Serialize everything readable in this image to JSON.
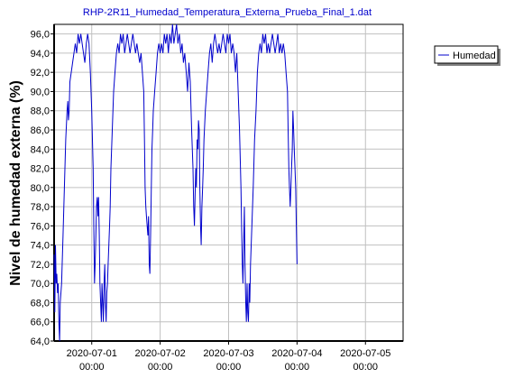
{
  "chart_data": {
    "type": "line",
    "title": "RHP-2R11_Humedad_Temperatura_Externa_Prueba_Final_1.dat",
    "xlabel": "",
    "ylabel": "Nivel de humedad externa (%)",
    "ylim": [
      64.0,
      97.0
    ],
    "xlim": [
      -0.55,
      4.55
    ],
    "grid": true,
    "legend": {
      "position": "top-right",
      "entries": [
        "Humedad"
      ]
    },
    "y_ticks": [
      "64,0",
      "66,0",
      "68,0",
      "70,0",
      "72,0",
      "74,0",
      "76,0",
      "78,0",
      "80,0",
      "82,0",
      "84,0",
      "86,0",
      "88,0",
      "90,0",
      "92,0",
      "94,0",
      "96,0"
    ],
    "x_ticks": [
      {
        "date": "2020-07-01",
        "time": "00:00"
      },
      {
        "date": "2020-07-02",
        "time": "00:00"
      },
      {
        "date": "2020-07-03",
        "time": "00:00"
      },
      {
        "date": "2020-07-04",
        "time": "00:00"
      },
      {
        "date": "2020-07-05",
        "time": "00:00"
      }
    ],
    "colors": {
      "series": "#0000cc"
    },
    "series": [
      {
        "name": "Humedad",
        "x_unit": "days relative to 2020-07-01 00:00",
        "points": [
          [
            -0.55,
            73
          ],
          [
            -0.54,
            67
          ],
          [
            -0.53,
            74
          ],
          [
            -0.52,
            70
          ],
          [
            -0.51,
            71
          ],
          [
            -0.5,
            69
          ],
          [
            -0.49,
            70
          ],
          [
            -0.48,
            66
          ],
          [
            -0.47,
            64
          ],
          [
            -0.46,
            68
          ],
          [
            -0.44,
            70
          ],
          [
            -0.42,
            75
          ],
          [
            -0.4,
            80
          ],
          [
            -0.38,
            85
          ],
          [
            -0.36,
            88
          ],
          [
            -0.35,
            89
          ],
          [
            -0.34,
            87
          ],
          [
            -0.33,
            88
          ],
          [
            -0.32,
            91
          ],
          [
            -0.3,
            92
          ],
          [
            -0.28,
            93
          ],
          [
            -0.26,
            94
          ],
          [
            -0.24,
            95
          ],
          [
            -0.22,
            94
          ],
          [
            -0.2,
            96
          ],
          [
            -0.18,
            95
          ],
          [
            -0.16,
            96
          ],
          [
            -0.14,
            95
          ],
          [
            -0.12,
            94
          ],
          [
            -0.1,
            93
          ],
          [
            -0.08,
            95
          ],
          [
            -0.06,
            96
          ],
          [
            -0.04,
            95
          ],
          [
            -0.02,
            92
          ],
          [
            0.0,
            88
          ],
          [
            0.02,
            82
          ],
          [
            0.03,
            76
          ],
          [
            0.04,
            70
          ],
          [
            0.05,
            72
          ],
          [
            0.06,
            75
          ],
          [
            0.07,
            78
          ],
          [
            0.08,
            79
          ],
          [
            0.09,
            77
          ],
          [
            0.1,
            79
          ],
          [
            0.11,
            75
          ],
          [
            0.12,
            70
          ],
          [
            0.13,
            68
          ],
          [
            0.14,
            66
          ],
          [
            0.15,
            70
          ],
          [
            0.16,
            68
          ],
          [
            0.17,
            66
          ],
          [
            0.18,
            70
          ],
          [
            0.19,
            72
          ],
          [
            0.2,
            68
          ],
          [
            0.21,
            66
          ],
          [
            0.22,
            69
          ],
          [
            0.23,
            70
          ],
          [
            0.24,
            72
          ],
          [
            0.25,
            74
          ],
          [
            0.26,
            76
          ],
          [
            0.27,
            78
          ],
          [
            0.28,
            82
          ],
          [
            0.3,
            86
          ],
          [
            0.32,
            90
          ],
          [
            0.34,
            92
          ],
          [
            0.36,
            94
          ],
          [
            0.38,
            95
          ],
          [
            0.4,
            94
          ],
          [
            0.42,
            96
          ],
          [
            0.44,
            95
          ],
          [
            0.46,
            96
          ],
          [
            0.48,
            94
          ],
          [
            0.5,
            95
          ],
          [
            0.52,
            96
          ],
          [
            0.54,
            95
          ],
          [
            0.56,
            94
          ],
          [
            0.58,
            95
          ],
          [
            0.6,
            96
          ],
          [
            0.62,
            95
          ],
          [
            0.64,
            94
          ],
          [
            0.66,
            95
          ],
          [
            0.68,
            94
          ],
          [
            0.7,
            93
          ],
          [
            0.72,
            94
          ],
          [
            0.74,
            92
          ],
          [
            0.76,
            90
          ],
          [
            0.77,
            85
          ],
          [
            0.78,
            80
          ],
          [
            0.79,
            78
          ],
          [
            0.8,
            77
          ],
          [
            0.81,
            76
          ],
          [
            0.82,
            75
          ],
          [
            0.83,
            77
          ],
          [
            0.84,
            72
          ],
          [
            0.85,
            71
          ],
          [
            0.86,
            75
          ],
          [
            0.87,
            80
          ],
          [
            0.88,
            84
          ],
          [
            0.89,
            86
          ],
          [
            0.9,
            88
          ],
          [
            0.92,
            90
          ],
          [
            0.94,
            92
          ],
          [
            0.96,
            94
          ],
          [
            0.98,
            95
          ],
          [
            1.0,
            94
          ],
          [
            1.02,
            95
          ],
          [
            1.04,
            94
          ],
          [
            1.06,
            96
          ],
          [
            1.08,
            95
          ],
          [
            1.1,
            96
          ],
          [
            1.12,
            94
          ],
          [
            1.14,
            96
          ],
          [
            1.16,
            95
          ],
          [
            1.18,
            97
          ],
          [
            1.2,
            95
          ],
          [
            1.22,
            96
          ],
          [
            1.24,
            97
          ],
          [
            1.26,
            95
          ],
          [
            1.28,
            96
          ],
          [
            1.3,
            94
          ],
          [
            1.32,
            95
          ],
          [
            1.34,
            93
          ],
          [
            1.36,
            94
          ],
          [
            1.38,
            92
          ],
          [
            1.4,
            90
          ],
          [
            1.42,
            93
          ],
          [
            1.44,
            91
          ],
          [
            1.46,
            86
          ],
          [
            1.48,
            82
          ],
          [
            1.49,
            78
          ],
          [
            1.5,
            76
          ],
          [
            1.51,
            79
          ],
          [
            1.52,
            82
          ],
          [
            1.53,
            80
          ],
          [
            1.54,
            85
          ],
          [
            1.55,
            84
          ],
          [
            1.56,
            87
          ],
          [
            1.57,
            86
          ],
          [
            1.58,
            80
          ],
          [
            1.59,
            76
          ],
          [
            1.6,
            74
          ],
          [
            1.61,
            78
          ],
          [
            1.62,
            80
          ],
          [
            1.63,
            82
          ],
          [
            1.64,
            85
          ],
          [
            1.66,
            88
          ],
          [
            1.68,
            90
          ],
          [
            1.7,
            92
          ],
          [
            1.72,
            94
          ],
          [
            1.74,
            95
          ],
          [
            1.76,
            93
          ],
          [
            1.78,
            95
          ],
          [
            1.8,
            96
          ],
          [
            1.82,
            95
          ],
          [
            1.84,
            94
          ],
          [
            1.86,
            95
          ],
          [
            1.88,
            94
          ],
          [
            1.9,
            95
          ],
          [
            1.92,
            96
          ],
          [
            1.94,
            95
          ],
          [
            1.96,
            94
          ],
          [
            1.98,
            96
          ],
          [
            2.0,
            95
          ],
          [
            2.02,
            96
          ],
          [
            2.04,
            94
          ],
          [
            2.06,
            95
          ],
          [
            2.08,
            94
          ],
          [
            2.1,
            92
          ],
          [
            2.12,
            94
          ],
          [
            2.14,
            90
          ],
          [
            2.16,
            86
          ],
          [
            2.18,
            80
          ],
          [
            2.19,
            76
          ],
          [
            2.2,
            72
          ],
          [
            2.21,
            70
          ],
          [
            2.22,
            74
          ],
          [
            2.23,
            78
          ],
          [
            2.24,
            72
          ],
          [
            2.25,
            68
          ],
          [
            2.26,
            66
          ],
          [
            2.27,
            70
          ],
          [
            2.28,
            67
          ],
          [
            2.29,
            66
          ],
          [
            2.3,
            70
          ],
          [
            2.31,
            68
          ],
          [
            2.32,
            72
          ],
          [
            2.34,
            76
          ],
          [
            2.36,
            80
          ],
          [
            2.38,
            85
          ],
          [
            2.4,
            88
          ],
          [
            2.42,
            92
          ],
          [
            2.44,
            94
          ],
          [
            2.46,
            95
          ],
          [
            2.48,
            94
          ],
          [
            2.5,
            96
          ],
          [
            2.52,
            95
          ],
          [
            2.54,
            96
          ],
          [
            2.56,
            94
          ],
          [
            2.58,
            95
          ],
          [
            2.6,
            94
          ],
          [
            2.62,
            95
          ],
          [
            2.64,
            96
          ],
          [
            2.66,
            95
          ],
          [
            2.68,
            94
          ],
          [
            2.7,
            95
          ],
          [
            2.72,
            96
          ],
          [
            2.74,
            94
          ],
          [
            2.76,
            95
          ],
          [
            2.78,
            94
          ],
          [
            2.8,
            95
          ],
          [
            2.82,
            94
          ],
          [
            2.84,
            92
          ],
          [
            2.86,
            90
          ],
          [
            2.87,
            86
          ],
          [
            2.88,
            82
          ],
          [
            2.89,
            80
          ],
          [
            2.9,
            78
          ],
          [
            2.91,
            80
          ],
          [
            2.92,
            82
          ],
          [
            2.93,
            84
          ],
          [
            2.94,
            88
          ],
          [
            2.95,
            86
          ],
          [
            2.96,
            84
          ],
          [
            2.97,
            82
          ],
          [
            2.98,
            80
          ],
          [
            2.99,
            76
          ],
          [
            3.0,
            72
          ]
        ]
      }
    ]
  }
}
